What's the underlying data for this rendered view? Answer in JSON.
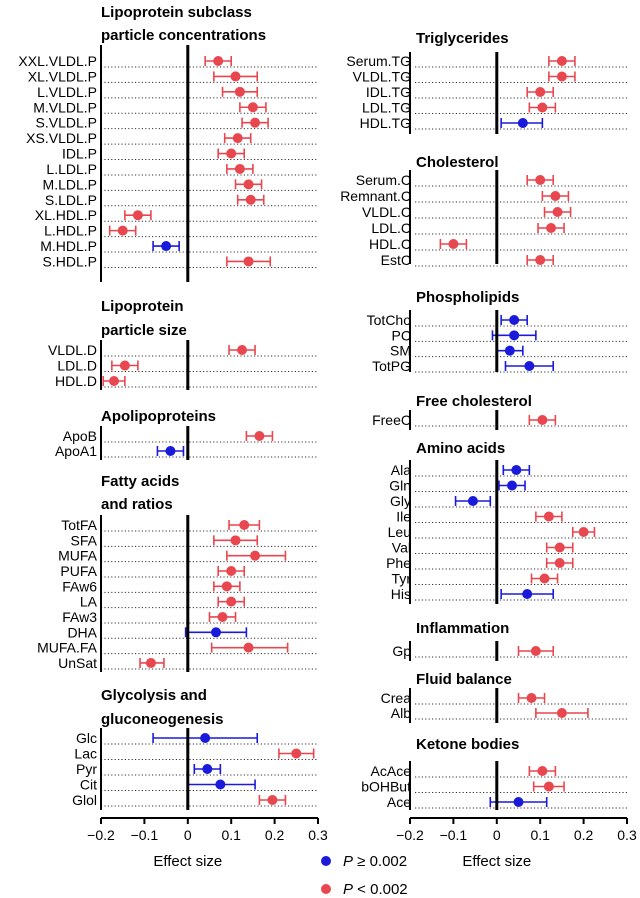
{
  "chart_data": {
    "type": "forest",
    "xlabel": "Effect size",
    "xlim": [
      -0.2,
      0.3
    ],
    "xticks": [
      "−0.2",
      "−0.1",
      "0",
      "0.1",
      "0.2",
      "0.3"
    ],
    "legend": {
      "position": "bottom-center",
      "items": [
        {
          "label_prefix": "P",
          "label_rest": " ≥ 0.002",
          "color": "#1a1adb"
        },
        {
          "label_prefix": "P",
          "label_rest": " < 0.002",
          "color": "#e8474f"
        }
      ]
    },
    "colors": {
      "sig": "#e8474f",
      "nonsig": "#1a1adb"
    },
    "panels": [
      {
        "column": "left",
        "title": [
          "Lipoprotein subclass",
          "particle concentrations"
        ],
        "rows": [
          {
            "label": "XXL.VLDL.P",
            "est": 0.07,
            "lo": 0.04,
            "hi": 0.1,
            "sig": true
          },
          {
            "label": "XL.VLDL.P",
            "est": 0.11,
            "lo": 0.06,
            "hi": 0.16,
            "sig": true
          },
          {
            "label": "L.VLDL.P",
            "est": 0.12,
            "lo": 0.08,
            "hi": 0.16,
            "sig": true
          },
          {
            "label": "M.VLDL.P",
            "est": 0.15,
            "lo": 0.12,
            "hi": 0.18,
            "sig": true
          },
          {
            "label": "S.VLDL.P",
            "est": 0.155,
            "lo": 0.125,
            "hi": 0.185,
            "sig": true
          },
          {
            "label": "XS.VLDL.P",
            "est": 0.115,
            "lo": 0.085,
            "hi": 0.145,
            "sig": true
          },
          {
            "label": "IDL.P",
            "est": 0.1,
            "lo": 0.07,
            "hi": 0.13,
            "sig": true
          },
          {
            "label": "L.LDL.P",
            "est": 0.12,
            "lo": 0.09,
            "hi": 0.15,
            "sig": true
          },
          {
            "label": "M.LDL.P",
            "est": 0.14,
            "lo": 0.11,
            "hi": 0.17,
            "sig": true
          },
          {
            "label": "S.LDL.P",
            "est": 0.145,
            "lo": 0.115,
            "hi": 0.175,
            "sig": true
          },
          {
            "label": "XL.HDL.P",
            "est": -0.115,
            "lo": -0.145,
            "hi": -0.085,
            "sig": true
          },
          {
            "label": "L.HDL.P",
            "est": -0.15,
            "lo": -0.18,
            "hi": -0.12,
            "sig": true
          },
          {
            "label": "M.HDL.P",
            "est": -0.05,
            "lo": -0.08,
            "hi": -0.02,
            "sig": false
          },
          {
            "label": "S.HDL.P",
            "est": 0.14,
            "lo": 0.09,
            "hi": 0.19,
            "sig": true
          }
        ]
      },
      {
        "column": "left",
        "title": [
          "Lipoprotein",
          "particle size"
        ],
        "rows": [
          {
            "label": "VLDL.D",
            "est": 0.125,
            "lo": 0.095,
            "hi": 0.155,
            "sig": true
          },
          {
            "label": "LDL.D",
            "est": -0.145,
            "lo": -0.175,
            "hi": -0.115,
            "sig": true
          },
          {
            "label": "HDL.D",
            "est": -0.17,
            "lo": -0.195,
            "hi": -0.145,
            "sig": true
          }
        ]
      },
      {
        "column": "left",
        "title": [
          "Apolipoproteins"
        ],
        "rows": [
          {
            "label": "ApoB",
            "est": 0.165,
            "lo": 0.135,
            "hi": 0.195,
            "sig": true
          },
          {
            "label": "ApoA1",
            "est": -0.04,
            "lo": -0.07,
            "hi": -0.01,
            "sig": false
          }
        ]
      },
      {
        "column": "left",
        "title": [
          "Fatty acids",
          "and ratios"
        ],
        "rows": [
          {
            "label": "TotFA",
            "est": 0.13,
            "lo": 0.095,
            "hi": 0.165,
            "sig": true
          },
          {
            "label": "SFA",
            "est": 0.11,
            "lo": 0.06,
            "hi": 0.16,
            "sig": true
          },
          {
            "label": "MUFA",
            "est": 0.155,
            "lo": 0.09,
            "hi": 0.225,
            "sig": true
          },
          {
            "label": "PUFA",
            "est": 0.1,
            "lo": 0.07,
            "hi": 0.13,
            "sig": true
          },
          {
            "label": "FAw6",
            "est": 0.09,
            "lo": 0.06,
            "hi": 0.12,
            "sig": true
          },
          {
            "label": "LA",
            "est": 0.1,
            "lo": 0.07,
            "hi": 0.13,
            "sig": true
          },
          {
            "label": "FAw3",
            "est": 0.08,
            "lo": 0.05,
            "hi": 0.11,
            "sig": true
          },
          {
            "label": "DHA",
            "est": 0.065,
            "lo": -0.005,
            "hi": 0.135,
            "sig": false
          },
          {
            "label": "MUFA.FA",
            "est": 0.14,
            "lo": 0.055,
            "hi": 0.23,
            "sig": true
          },
          {
            "label": "UnSat",
            "est": -0.085,
            "lo": -0.11,
            "hi": -0.055,
            "sig": true
          }
        ]
      },
      {
        "column": "left",
        "title": [
          "Glycolysis and",
          "gluconeogenesis"
        ],
        "rows": [
          {
            "label": "Glc",
            "est": 0.04,
            "lo": -0.08,
            "hi": 0.16,
            "sig": false
          },
          {
            "label": "Lac",
            "est": 0.25,
            "lo": 0.21,
            "hi": 0.29,
            "sig": true
          },
          {
            "label": "Pyr",
            "est": 0.045,
            "lo": 0.015,
            "hi": 0.075,
            "sig": false
          },
          {
            "label": "Cit",
            "est": 0.075,
            "lo": 0.0,
            "hi": 0.155,
            "sig": false
          },
          {
            "label": "Glol",
            "est": 0.195,
            "lo": 0.165,
            "hi": 0.225,
            "sig": true
          }
        ]
      },
      {
        "column": "right",
        "title": [
          "Triglycerides"
        ],
        "rows": [
          {
            "label": "Serum.TG",
            "est": 0.15,
            "lo": 0.12,
            "hi": 0.18,
            "sig": true
          },
          {
            "label": "VLDL.TG",
            "est": 0.15,
            "lo": 0.12,
            "hi": 0.18,
            "sig": true
          },
          {
            "label": "IDL.TG",
            "est": 0.1,
            "lo": 0.07,
            "hi": 0.13,
            "sig": true
          },
          {
            "label": "LDL.TG",
            "est": 0.105,
            "lo": 0.075,
            "hi": 0.135,
            "sig": true
          },
          {
            "label": "HDL.TG",
            "est": 0.06,
            "lo": 0.01,
            "hi": 0.105,
            "sig": false
          }
        ]
      },
      {
        "column": "right",
        "title": [
          "Cholesterol"
        ],
        "rows": [
          {
            "label": "Serum.C",
            "est": 0.1,
            "lo": 0.07,
            "hi": 0.13,
            "sig": true
          },
          {
            "label": "Remnant.C",
            "est": 0.135,
            "lo": 0.105,
            "hi": 0.165,
            "sig": true
          },
          {
            "label": "VLDL.C",
            "est": 0.14,
            "lo": 0.11,
            "hi": 0.17,
            "sig": true
          },
          {
            "label": "LDL.C",
            "est": 0.125,
            "lo": 0.095,
            "hi": 0.155,
            "sig": true
          },
          {
            "label": "HDL.C",
            "est": -0.1,
            "lo": -0.13,
            "hi": -0.07,
            "sig": true
          },
          {
            "label": "EstC",
            "est": 0.1,
            "lo": 0.07,
            "hi": 0.13,
            "sig": true
          }
        ]
      },
      {
        "column": "right",
        "title": [
          "Phospholipids"
        ],
        "rows": [
          {
            "label": "TotCho",
            "est": 0.04,
            "lo": 0.01,
            "hi": 0.07,
            "sig": false
          },
          {
            "label": "PC",
            "est": 0.04,
            "lo": -0.01,
            "hi": 0.09,
            "sig": false
          },
          {
            "label": "SM",
            "est": 0.03,
            "lo": 0.0,
            "hi": 0.06,
            "sig": false
          },
          {
            "label": "TotPG",
            "est": 0.075,
            "lo": 0.02,
            "hi": 0.13,
            "sig": false
          }
        ]
      },
      {
        "column": "right",
        "title": [
          "Free cholesterol"
        ],
        "rows": [
          {
            "label": "FreeC",
            "est": 0.105,
            "lo": 0.075,
            "hi": 0.135,
            "sig": true
          }
        ]
      },
      {
        "column": "right",
        "title": [
          "Amino acids"
        ],
        "rows": [
          {
            "label": "Ala",
            "est": 0.045,
            "lo": 0.015,
            "hi": 0.075,
            "sig": false
          },
          {
            "label": "Gln",
            "est": 0.035,
            "lo": 0.005,
            "hi": 0.065,
            "sig": false
          },
          {
            "label": "Gly",
            "est": -0.055,
            "lo": -0.095,
            "hi": -0.015,
            "sig": false
          },
          {
            "label": "Ile",
            "est": 0.12,
            "lo": 0.09,
            "hi": 0.15,
            "sig": true
          },
          {
            "label": "Leu",
            "est": 0.2,
            "lo": 0.175,
            "hi": 0.225,
            "sig": true
          },
          {
            "label": "Val",
            "est": 0.145,
            "lo": 0.115,
            "hi": 0.175,
            "sig": true
          },
          {
            "label": "Phe",
            "est": 0.145,
            "lo": 0.115,
            "hi": 0.175,
            "sig": true
          },
          {
            "label": "Tyr",
            "est": 0.11,
            "lo": 0.08,
            "hi": 0.14,
            "sig": true
          },
          {
            "label": "His",
            "est": 0.07,
            "lo": 0.01,
            "hi": 0.13,
            "sig": false
          }
        ]
      },
      {
        "column": "right",
        "title": [
          "Inflammation"
        ],
        "rows": [
          {
            "label": "Gp",
            "est": 0.09,
            "lo": 0.05,
            "hi": 0.13,
            "sig": true
          }
        ]
      },
      {
        "column": "right",
        "title": [
          "Fluid balance"
        ],
        "rows": [
          {
            "label": "Crea",
            "est": 0.08,
            "lo": 0.05,
            "hi": 0.11,
            "sig": true
          },
          {
            "label": "Alb",
            "est": 0.15,
            "lo": 0.09,
            "hi": 0.21,
            "sig": true
          }
        ]
      },
      {
        "column": "right",
        "title": [
          "Ketone bodies"
        ],
        "rows": [
          {
            "label": "AcAce",
            "est": 0.105,
            "lo": 0.075,
            "hi": 0.135,
            "sig": true
          },
          {
            "label": "bOHBut",
            "est": 0.12,
            "lo": 0.085,
            "hi": 0.155,
            "sig": true
          },
          {
            "label": "Ace",
            "est": 0.05,
            "lo": -0.015,
            "hi": 0.115,
            "sig": false
          }
        ]
      }
    ]
  }
}
